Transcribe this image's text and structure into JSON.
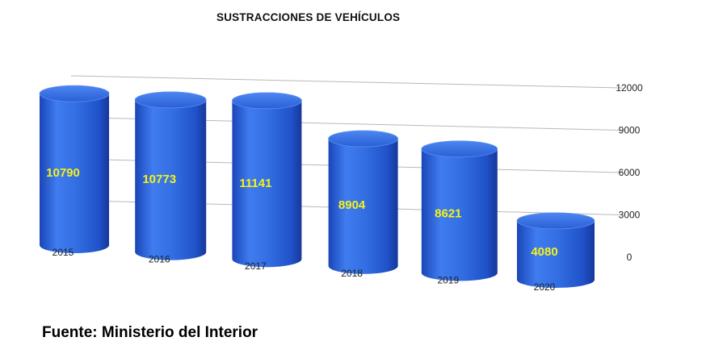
{
  "chart_data": {
    "type": "bar",
    "title": "SUSTRACCIONES DE VEHÍCULOS",
    "categories": [
      "2015",
      "2016",
      "2017",
      "2018",
      "2019",
      "2020"
    ],
    "values": [
      10790,
      10773,
      11141,
      8904,
      8621,
      4080
    ],
    "data_labels": [
      "10790",
      "10773",
      "11141",
      "8904",
      "8621",
      "4080"
    ],
    "y_ticks": [
      "0",
      "3000",
      "6000",
      "9000",
      "12000"
    ],
    "ylim": [
      0,
      12000
    ],
    "grid": true,
    "bar_color": "#2f6be0",
    "label_color": "#f4f21a"
  },
  "source_text": "Fuente: Ministerio del Interior"
}
